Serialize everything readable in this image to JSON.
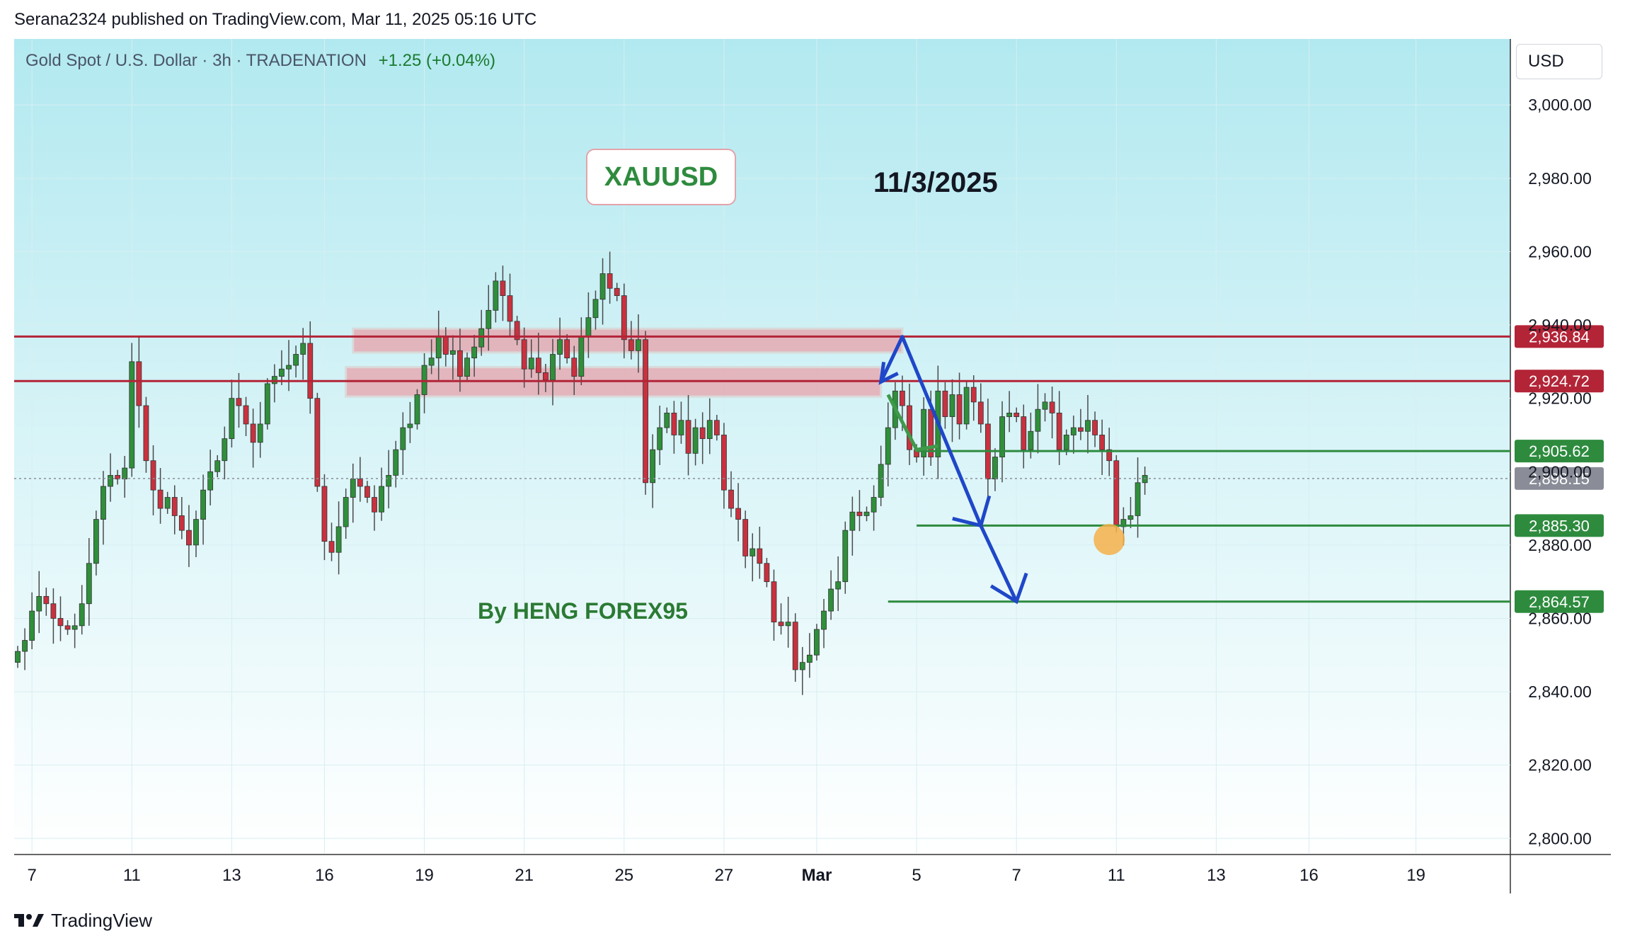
{
  "header": {
    "published_by": "Serana2324 published on TradingView.com, Mar 11, 2025 05:16 UTC"
  },
  "symbol_bar": {
    "title": "Gold Spot / U.S. Dollar · 3h · TRADENATION",
    "change": "+1.25 (+0.04%)"
  },
  "currency_button": {
    "label": "USD"
  },
  "annotations": {
    "ticker": "XAUUSD",
    "date": "11/3/2025",
    "author": "By HENG FOREX95"
  },
  "footer": {
    "brand": "TradingView"
  },
  "colors": {
    "bullish": "#2f8f3a",
    "bearish": "#c9313f",
    "resistance": "#b32437",
    "support": "#2e8b3e",
    "arrow": "#1f47c8",
    "bg_top": "#b2e9f0",
    "bg_bottom": "#ffffff",
    "zone": "#e8a0aa",
    "last_price": "#8a8d98",
    "marker": "#f5b04a"
  },
  "chart_data": {
    "type": "candlestick",
    "interval": "3h",
    "y_axis": {
      "range": [
        2796,
        3018
      ],
      "ticks": [
        {
          "value": 3000,
          "label": "3,000.00"
        },
        {
          "value": 2980,
          "label": "2,980.00"
        },
        {
          "value": 2960,
          "label": "2,960.00"
        },
        {
          "value": 2940,
          "label": "2,940.00"
        },
        {
          "value": 2920,
          "label": "2,920.00"
        },
        {
          "value": 2900,
          "label": "2,900.00"
        },
        {
          "value": 2880,
          "label": "2,880.00"
        },
        {
          "value": 2860,
          "label": "2,860.00"
        },
        {
          "value": 2840,
          "label": "2,840.00"
        },
        {
          "value": 2820,
          "label": "2,820.00"
        },
        {
          "value": 2800,
          "label": "2,800.00"
        }
      ]
    },
    "x_axis": {
      "ticks": [
        {
          "label": "7",
          "idx": 2
        },
        {
          "label": "11",
          "idx": 16
        },
        {
          "label": "13",
          "idx": 30
        },
        {
          "label": "16",
          "idx": 43
        },
        {
          "label": "19",
          "idx": 57
        },
        {
          "label": "21",
          "idx": 71
        },
        {
          "label": "25",
          "idx": 85
        },
        {
          "label": "27",
          "idx": 99
        },
        {
          "label": "Mar",
          "idx": 112
        },
        {
          "label": "5",
          "idx": 126
        },
        {
          "label": "7",
          "idx": 140
        },
        {
          "label": "11",
          "idx": 154
        },
        {
          "label": "13",
          "idx": 168
        },
        {
          "label": "16",
          "idx": 181
        },
        {
          "label": "19",
          "idx": 196
        }
      ],
      "total_slots": 206
    },
    "ohlc_closes": [
      2851,
      2854,
      2862,
      2866,
      2864,
      2860,
      2858,
      2857,
      2858,
      2864,
      2875,
      2887,
      2896,
      2899,
      2898,
      2901,
      2930,
      2918,
      2903,
      2895,
      2890,
      2893,
      2888,
      2884,
      2880,
      2887,
      2895,
      2900,
      2903,
      2909,
      2920,
      2918,
      2913,
      2908,
      2913,
      2924,
      2926,
      2928,
      2929,
      2932,
      2935,
      2920,
      2896,
      2881,
      2878,
      2885,
      2893,
      2898,
      2896,
      2893,
      2889,
      2896,
      2899,
      2906,
      2912,
      2913,
      2921,
      2929,
      2931,
      2937,
      2932,
      2933,
      2926,
      2931,
      2934,
      2939,
      2944,
      2952,
      2948,
      2941,
      2936,
      2928,
      2931,
      2927,
      2925,
      2932,
      2936,
      2931,
      2926,
      2937,
      2942,
      2947,
      2954,
      2950,
      2948,
      2936,
      2933,
      2936,
      2897,
      2906,
      2912,
      2916,
      2910,
      2914,
      2905,
      2912,
      2909,
      2914,
      2910,
      2895,
      2890,
      2887,
      2877,
      2879,
      2875,
      2870,
      2859,
      2858,
      2859,
      2846,
      2848,
      2850,
      2857,
      2862,
      2868,
      2870,
      2884,
      2889,
      2888,
      2889,
      2893,
      2902,
      2912,
      2922,
      2918,
      2906,
      2904,
      2917,
      2904,
      2922,
      2915,
      2921,
      2913,
      2923,
      2919,
      2913,
      2898,
      2904,
      2915,
      2916,
      2915,
      2906,
      2911,
      2917,
      2919,
      2916,
      2906,
      2910,
      2912,
      2911,
      2914,
      2910,
      2906,
      2903,
      2885,
      2887,
      2888,
      2897,
      2899
    ],
    "horizontal_levels": [
      {
        "value": 2936.84,
        "label": "2,936.84",
        "kind": "resistance"
      },
      {
        "value": 2924.72,
        "label": "2,924.72",
        "kind": "resistance"
      },
      {
        "value": 2905.62,
        "label": "2,905.62",
        "kind": "support"
      },
      {
        "value": 2898.15,
        "label": "2,898.15",
        "kind": "last_price"
      },
      {
        "value": 2885.3,
        "label": "2,885.30",
        "kind": "support"
      },
      {
        "value": 2864.57,
        "label": "2,864.57",
        "kind": "support"
      }
    ],
    "resistance_zones": [
      {
        "from_idx": 47,
        "to_idx": 124,
        "low": 2932.5,
        "high": 2939
      },
      {
        "from_idx": 46,
        "to_idx": 121,
        "low": 2920.5,
        "high": 2928.5
      }
    ],
    "projection_path": [
      {
        "idx": 121,
        "value": 2924.5
      },
      {
        "idx": 124,
        "value": 2936.8
      },
      {
        "idx": 135,
        "value": 2885.3
      },
      {
        "idx": 140,
        "value": 2864.6
      }
    ],
    "marker": {
      "idx": 153,
      "value": 2881.5
    }
  }
}
